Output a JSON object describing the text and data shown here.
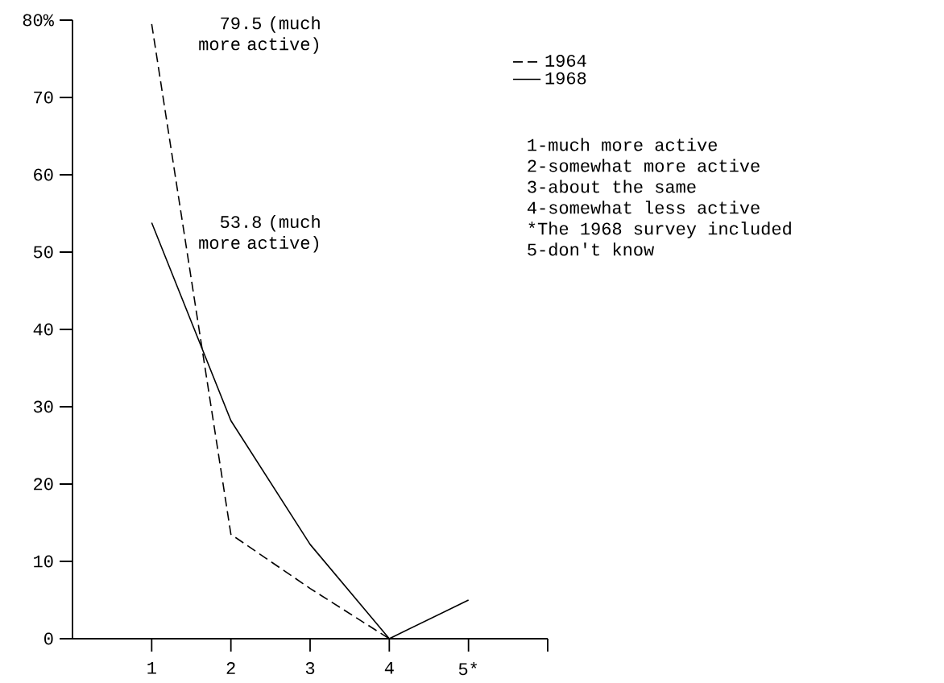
{
  "chart_data": {
    "type": "line",
    "xlim": [
      0,
      6
    ],
    "ylim": [
      0,
      80
    ],
    "xticks": [
      1,
      2,
      3,
      4,
      {
        "value": 5,
        "label": "5*"
      },
      {
        "value": 6,
        "label": null
      }
    ],
    "yticks": [
      0,
      10,
      20,
      30,
      40,
      50,
      60,
      70,
      {
        "value": 80,
        "label": "80%"
      }
    ],
    "series": [
      {
        "name": "1964",
        "color": "#000000",
        "line_style": "dashed",
        "x": [
          1,
          2,
          3,
          4
        ],
        "values": [
          79.5,
          13.5,
          6.5,
          0
        ]
      },
      {
        "name": "1968",
        "color": "#000000",
        "line_style": "solid",
        "x": [
          1,
          2,
          3,
          4,
          5
        ],
        "values": [
          53.8,
          28.2,
          12.2,
          0,
          5.0
        ]
      }
    ],
    "legend": "top right",
    "marker": "none",
    "annotations": [
      {
        "text": "79.5 (much more active)",
        "x": 1,
        "y": 79.5
      },
      {
        "text": "53.8 (much more active)",
        "x": 1,
        "y": 53.8
      },
      "1-much more active",
      "2-somewhat more active",
      "3-about the same",
      "4-somewhat less active",
      "*The 1968 survey included",
      "5-don't know"
    ]
  }
}
